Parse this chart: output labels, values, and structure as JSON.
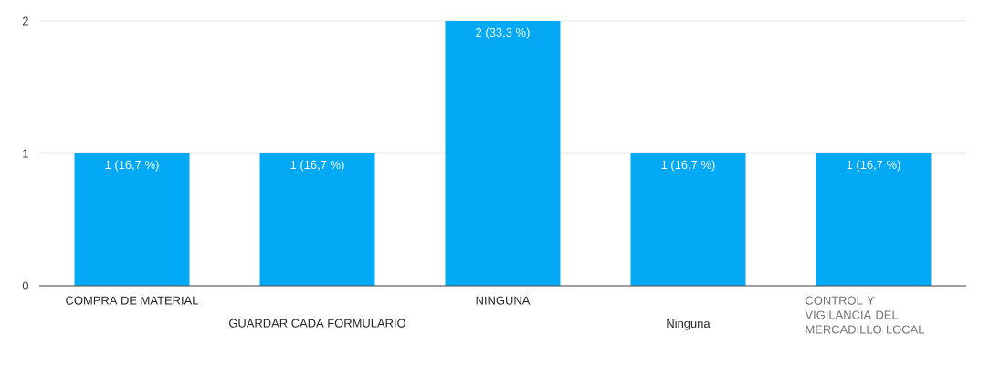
{
  "chart_data": {
    "type": "bar",
    "categories": [
      "COMPRA DE MATERIAL",
      "GUARDAR CADA FORMULARIO",
      "NINGUNA",
      "Ninguna",
      "CONTROL Y VIGILANCIA DEL MERCADILLO LOCAL"
    ],
    "values": [
      1,
      1,
      2,
      1,
      1
    ],
    "value_labels": [
      "1 (16,7 %)",
      "1 (16,7 %)",
      "2 (33,3 %)",
      "1 (16,7 %)",
      "1 (16,7 %)"
    ],
    "color": "#03a9f4",
    "ylim": [
      0,
      2
    ],
    "yticks": [
      0,
      1,
      2
    ],
    "grid": "y"
  }
}
